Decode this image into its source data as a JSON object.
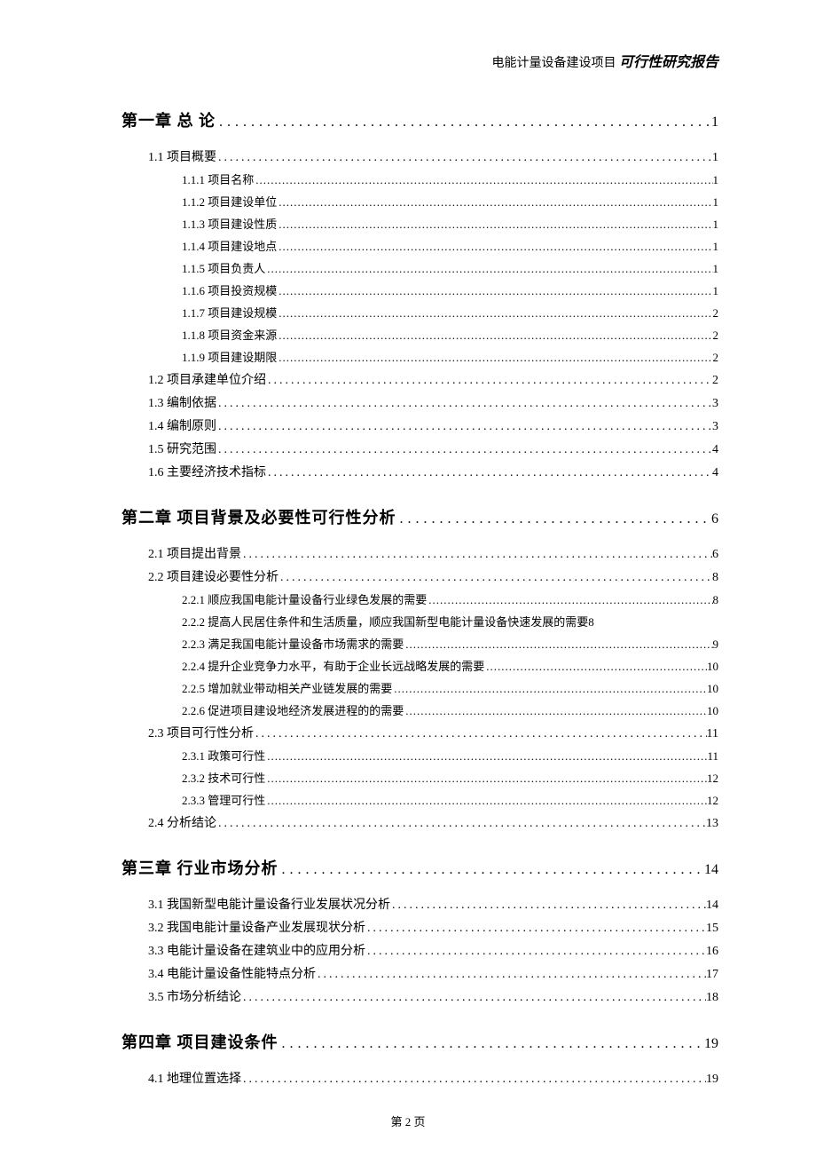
{
  "header": {
    "normal": "电能计量设备建设项目",
    "italic": "可行性研究报告"
  },
  "footer": "第 2 页",
  "toc": [
    {
      "level": "chapter",
      "title": "第一章 总 论",
      "page": "1"
    },
    {
      "level": "section",
      "title": "1.1 项目概要",
      "page": "1"
    },
    {
      "level": "subsection",
      "title": "1.1.1 项目名称",
      "page": "1"
    },
    {
      "level": "subsection",
      "title": "1.1.2 项目建设单位",
      "page": "1"
    },
    {
      "level": "subsection",
      "title": "1.1.3 项目建设性质",
      "page": "1"
    },
    {
      "level": "subsection",
      "title": "1.1.4 项目建设地点",
      "page": "1"
    },
    {
      "level": "subsection",
      "title": "1.1.5 项目负责人",
      "page": "1"
    },
    {
      "level": "subsection",
      "title": "1.1.6 项目投资规模",
      "page": "1"
    },
    {
      "level": "subsection",
      "title": "1.1.7 项目建设规模",
      "page": "2"
    },
    {
      "level": "subsection",
      "title": "1.1.8 项目资金来源",
      "page": "2"
    },
    {
      "level": "subsection",
      "title": "1.1.9 项目建设期限",
      "page": "2"
    },
    {
      "level": "section",
      "title": "1.2 项目承建单位介绍",
      "page": "2"
    },
    {
      "level": "section",
      "title": "1.3 编制依据",
      "page": "3"
    },
    {
      "level": "section",
      "title": "1.4 编制原则",
      "page": "3"
    },
    {
      "level": "section",
      "title": "1.5 研究范围",
      "page": "4"
    },
    {
      "level": "section",
      "title": "1.6 主要经济技术指标",
      "page": "4"
    },
    {
      "level": "chapter",
      "title": "第二章 项目背景及必要性可行性分析",
      "page": "6"
    },
    {
      "level": "section",
      "title": "2.1 项目提出背景",
      "page": "6"
    },
    {
      "level": "section",
      "title": "2.2 项目建设必要性分析",
      "page": "8"
    },
    {
      "level": "subsection",
      "title": "2.2.1 顺应我国电能计量设备行业绿色发展的需要",
      "page": "8"
    },
    {
      "level": "subsection-noline",
      "title": "2.2.2 提高人民居住条件和生活质量，顺应我国新型电能计量设备快速发展的需要8"
    },
    {
      "level": "subsection",
      "title": "2.2.3 满足我国电能计量设备市场需求的需要",
      "page": "9"
    },
    {
      "level": "subsection",
      "title": "2.2.4 提升企业竞争力水平，有助于企业长远战略发展的需要",
      "page": "10"
    },
    {
      "level": "subsection",
      "title": "2.2.5 增加就业带动相关产业链发展的需要",
      "page": "10"
    },
    {
      "level": "subsection",
      "title": "2.2.6 促进项目建设地经济发展进程的的需要",
      "page": "10"
    },
    {
      "level": "section",
      "title": "2.3 项目可行性分析",
      "page": "11"
    },
    {
      "level": "subsection",
      "title": "2.3.1 政策可行性",
      "page": "11"
    },
    {
      "level": "subsection",
      "title": "2.3.2 技术可行性",
      "page": "12"
    },
    {
      "level": "subsection",
      "title": "2.3.3 管理可行性",
      "page": "12"
    },
    {
      "level": "section",
      "title": "2.4 分析结论",
      "page": "13"
    },
    {
      "level": "chapter",
      "title": "第三章 行业市场分析",
      "page": "14"
    },
    {
      "level": "section",
      "title": "3.1 我国新型电能计量设备行业发展状况分析",
      "page": "14"
    },
    {
      "level": "section",
      "title": "3.2 我国电能计量设备产业发展现状分析",
      "page": "15"
    },
    {
      "level": "section",
      "title": "3.3 电能计量设备在建筑业中的应用分析",
      "page": "16"
    },
    {
      "level": "section",
      "title": "3.4 电能计量设备性能特点分析",
      "page": "17"
    },
    {
      "level": "section",
      "title": "3.5 市场分析结论",
      "page": "18"
    },
    {
      "level": "chapter",
      "title": "第四章 项目建设条件",
      "page": "19"
    },
    {
      "level": "section",
      "title": "4.1 地理位置选择",
      "page": "19"
    }
  ]
}
